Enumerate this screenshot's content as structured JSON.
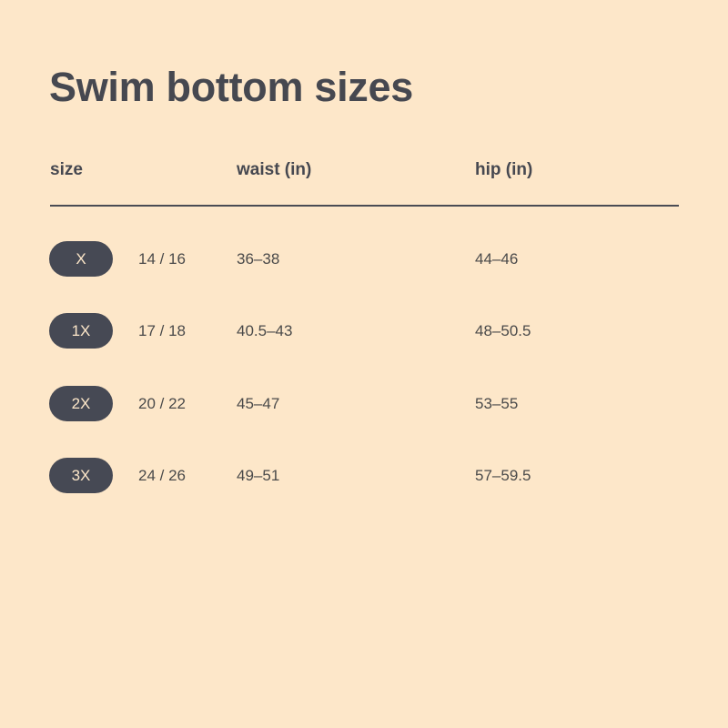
{
  "title": "Swim bottom sizes",
  "headers": {
    "size": "size",
    "waist": "waist (in)",
    "hip": "hip (in)"
  },
  "colors": {
    "background": "#fde7c9",
    "pill": "#464954",
    "text": "#464850"
  },
  "rows": [
    {
      "size": "X",
      "numeric": "14 / 16",
      "waist": "36–38",
      "hip": "44–46"
    },
    {
      "size": "1X",
      "numeric": "17 / 18",
      "waist": "40.5–43",
      "hip": "48–50.5"
    },
    {
      "size": "2X",
      "numeric": "20 / 22",
      "waist": "45–47",
      "hip": "53–55"
    },
    {
      "size": "3X",
      "numeric": "24 / 26",
      "waist": "49–51",
      "hip": "57–59.5"
    }
  ]
}
